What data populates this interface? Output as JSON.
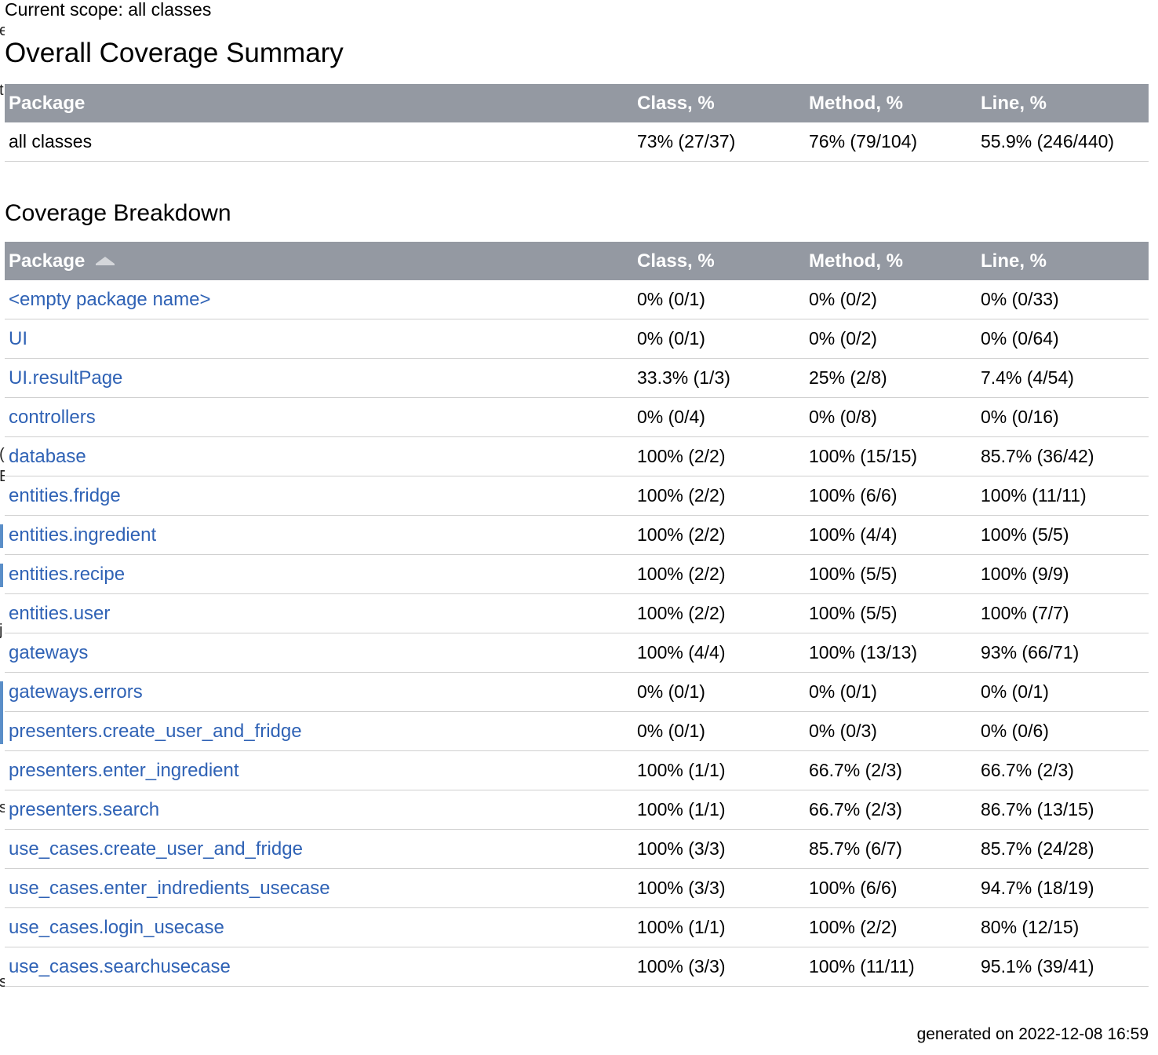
{
  "scope": {
    "label": "Current scope: all classes"
  },
  "summary": {
    "title": "Overall Coverage Summary",
    "headers": {
      "package": "Package",
      "class": "Class, %",
      "method": "Method, %",
      "line": "Line, %"
    },
    "row": {
      "package": "all classes",
      "class": "73% (27/37)",
      "method": "76% (79/104)",
      "line": "55.9% (246/440)"
    }
  },
  "breakdown": {
    "title": "Coverage Breakdown",
    "headers": {
      "package": "Package",
      "class": "Class, %",
      "method": "Method, %",
      "line": "Line, %"
    },
    "sort_icon": "sort-ascending-icon",
    "rows": [
      {
        "package": "<empty package name>",
        "class": "0% (0/1)",
        "method": "0% (0/2)",
        "line": "0% (0/33)"
      },
      {
        "package": "UI",
        "class": "0% (0/1)",
        "method": "0% (0/2)",
        "line": "0% (0/64)"
      },
      {
        "package": "UI.resultPage",
        "class": "33.3% (1/3)",
        "method": "25% (2/8)",
        "line": "7.4% (4/54)"
      },
      {
        "package": "controllers",
        "class": "0% (0/4)",
        "method": "0% (0/8)",
        "line": "0% (0/16)"
      },
      {
        "package": "database",
        "class": "100% (2/2)",
        "method": "100% (15/15)",
        "line": "85.7% (36/42)"
      },
      {
        "package": "entities.fridge",
        "class": "100% (2/2)",
        "method": "100% (6/6)",
        "line": "100% (11/11)"
      },
      {
        "package": "entities.ingredient",
        "class": "100% (2/2)",
        "method": "100% (4/4)",
        "line": "100% (5/5)"
      },
      {
        "package": "entities.recipe",
        "class": "100% (2/2)",
        "method": "100% (5/5)",
        "line": "100% (9/9)"
      },
      {
        "package": "entities.user",
        "class": "100% (2/2)",
        "method": "100% (5/5)",
        "line": "100% (7/7)"
      },
      {
        "package": "gateways",
        "class": "100% (4/4)",
        "method": "100% (13/13)",
        "line": "93% (66/71)"
      },
      {
        "package": "gateways.errors",
        "class": "0% (0/1)",
        "method": "0% (0/1)",
        "line": "0% (0/1)"
      },
      {
        "package": "presenters.create_user_and_fridge",
        "class": "0% (0/1)",
        "method": "0% (0/3)",
        "line": "0% (0/6)"
      },
      {
        "package": "presenters.enter_ingredient",
        "class": "100% (1/1)",
        "method": "66.7% (2/3)",
        "line": "66.7% (2/3)"
      },
      {
        "package": "presenters.search",
        "class": "100% (1/1)",
        "method": "66.7% (2/3)",
        "line": "86.7% (13/15)"
      },
      {
        "package": "use_cases.create_user_and_fridge",
        "class": "100% (3/3)",
        "method": "85.7% (6/7)",
        "line": "85.7% (24/28)"
      },
      {
        "package": "use_cases.enter_indredients_usecase",
        "class": "100% (3/3)",
        "method": "100% (6/6)",
        "line": "94.7% (18/19)"
      },
      {
        "package": "use_cases.login_usecase",
        "class": "100% (1/1)",
        "method": "100% (2/2)",
        "line": "80% (12/15)"
      },
      {
        "package": "use_cases.searchusecase",
        "class": "100% (3/3)",
        "method": "100% (11/11)",
        "line": "95.1% (39/41)"
      }
    ]
  },
  "footer": {
    "generated": "generated on 2022-12-08 16:59"
  },
  "colors": {
    "header_bg": "#9499a2",
    "link": "#2f62b5",
    "row_border": "#d0d0d0"
  }
}
